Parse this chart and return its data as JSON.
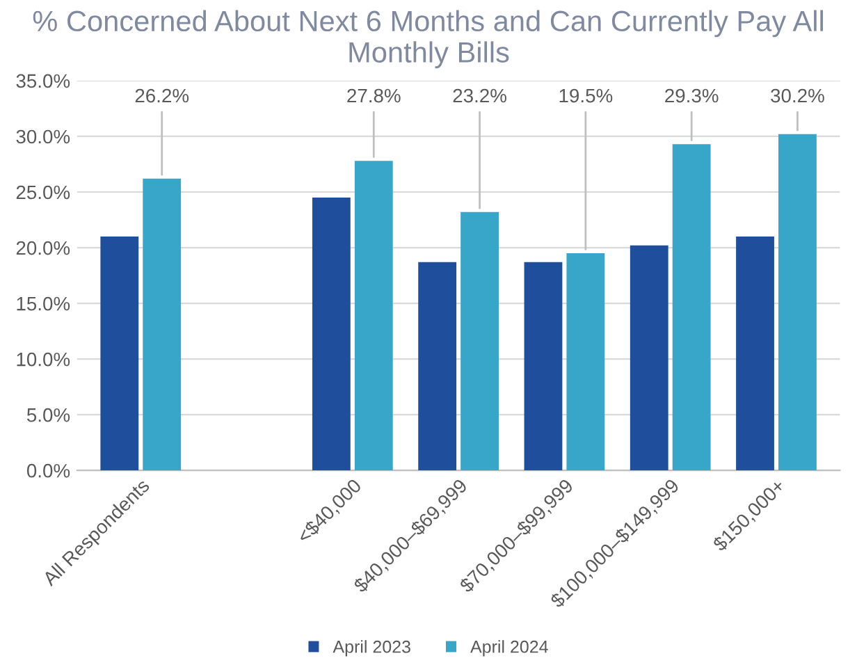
{
  "chart_data": {
    "type": "bar",
    "title": "% Concerned About Next 6 Months and Can Currently Pay All Monthly Bills",
    "categories": [
      "All Respondents",
      null,
      "<$40,000",
      "$40,000–$69,999",
      "$70,000–$99,999",
      "$100,000–$149,999",
      "$150,000+"
    ],
    "series": [
      {
        "name": "April 2023",
        "color": "#1f4e9c",
        "values": [
          21.0,
          null,
          24.5,
          18.7,
          18.7,
          20.2,
          21.0
        ]
      },
      {
        "name": "April 2024",
        "color": "#38a6c8",
        "values": [
          26.2,
          null,
          27.8,
          23.2,
          19.5,
          29.3,
          30.2
        ],
        "value_labels": [
          "26.2%",
          null,
          "27.8%",
          "23.2%",
          "19.5%",
          "29.3%",
          "30.2%"
        ]
      }
    ],
    "ylim": [
      0,
      35
    ],
    "yticks": [
      {
        "value": 0,
        "label": "0.0%"
      },
      {
        "value": 5,
        "label": "5.0%"
      },
      {
        "value": 10,
        "label": "10.0%"
      },
      {
        "value": 15,
        "label": "15.0%"
      },
      {
        "value": 20,
        "label": "20.0%"
      },
      {
        "value": 25,
        "label": "25.0%"
      },
      {
        "value": 30,
        "label": "30.0%"
      },
      {
        "value": 35,
        "label": "35.0%"
      }
    ],
    "grid": "y",
    "legend": "bottom"
  }
}
